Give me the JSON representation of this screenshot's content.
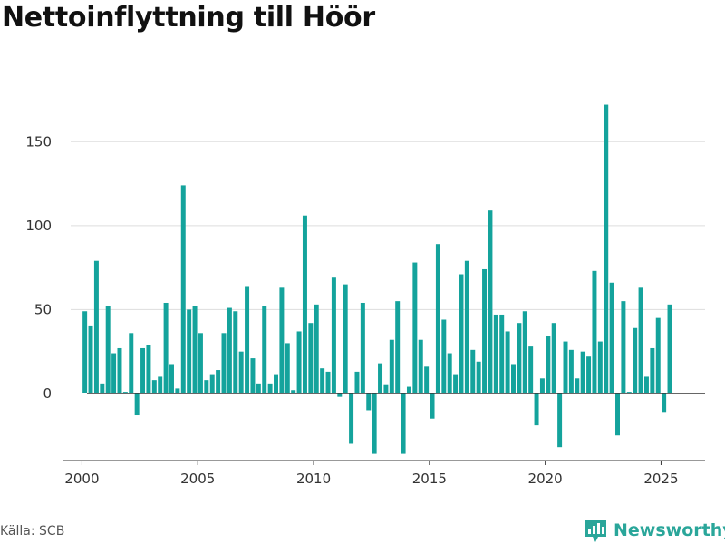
{
  "title": "Nettoinflyttning till Höör",
  "source": "Källa: SCB",
  "brand": {
    "name": "Newsworthy",
    "icon": "newsworthy-logo-icon",
    "color": "#2aa69a"
  },
  "colors": {
    "bar": "#14a39c",
    "grid": "#dddddd",
    "zero_line": "#333333",
    "axis": "#333333"
  },
  "chart_data": {
    "type": "bar",
    "title": "Nettoinflyttning till Höör",
    "xlabel": "",
    "ylabel": "",
    "x_range": [
      1999.2,
      2026.9
    ],
    "ylim": [
      -40,
      175
    ],
    "x_ticks": [
      2000,
      2005,
      2010,
      2015,
      2020,
      2025
    ],
    "y_ticks": [
      0,
      50,
      100,
      150
    ],
    "grid": {
      "y": true,
      "x": false
    },
    "legend": "none",
    "series": [
      {
        "start": "2000-Q1",
        "frequency": "quarterly",
        "values": [
          49,
          40,
          79,
          6,
          52,
          24,
          27,
          1,
          36,
          -13,
          27,
          29,
          8,
          10,
          54,
          17,
          3,
          124,
          50,
          52,
          36,
          8,
          11,
          14,
          36,
          51,
          49,
          25,
          64,
          21,
          6,
          52,
          6,
          11,
          63,
          30,
          2,
          37,
          106,
          42,
          53,
          15,
          13,
          69,
          -2,
          65,
          -30,
          13,
          54,
          -10,
          -36,
          18,
          5,
          32,
          55,
          -36,
          4,
          78,
          32,
          16,
          -15,
          89,
          44,
          24,
          11,
          71,
          79,
          26,
          19,
          74,
          109,
          47,
          47,
          37,
          17,
          42,
          49,
          28,
          -19,
          9,
          34,
          42,
          -32,
          31,
          26,
          9,
          25,
          22,
          73,
          31,
          172,
          66,
          -25,
          55,
          1,
          39,
          63,
          10,
          27,
          45,
          -11,
          53
        ]
      }
    ]
  }
}
